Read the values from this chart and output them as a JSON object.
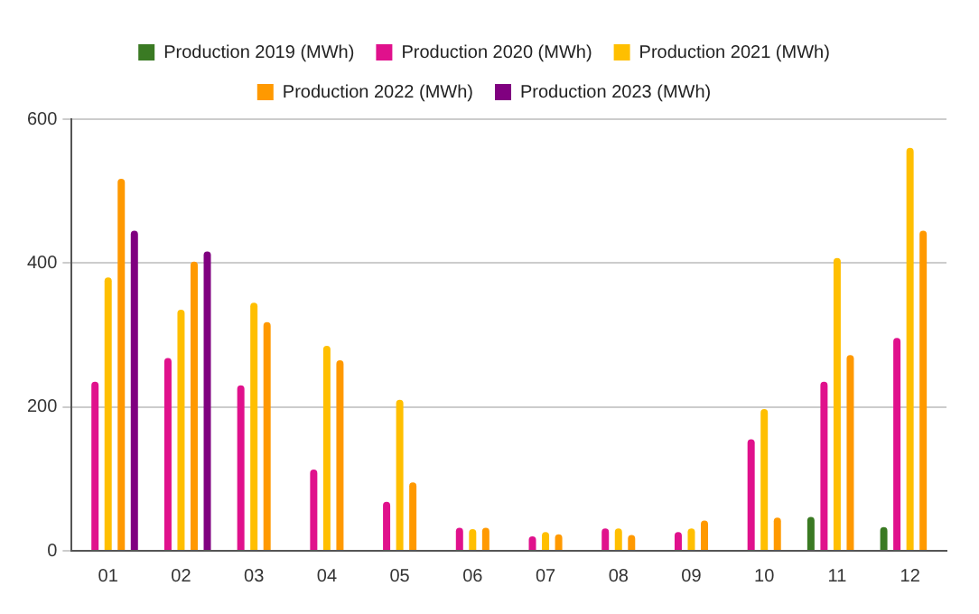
{
  "chart_data": {
    "type": "bar",
    "categories": [
      "01",
      "02",
      "03",
      "04",
      "05",
      "06",
      "07",
      "08",
      "09",
      "10",
      "11",
      "12"
    ],
    "series": [
      {
        "name": "Production 2019 (MWh)",
        "color": "#3a7a23",
        "values": [
          null,
          null,
          null,
          null,
          null,
          null,
          null,
          null,
          null,
          null,
          47,
          33
        ]
      },
      {
        "name": "Production 2020 (MWh)",
        "color": "#e0118c",
        "values": [
          235,
          268,
          230,
          113,
          68,
          32,
          20,
          31,
          26,
          155,
          235,
          296
        ]
      },
      {
        "name": "Production 2021 (MWh)",
        "color": "#ffbf00",
        "values": [
          380,
          335,
          345,
          285,
          210,
          30,
          26,
          31,
          31,
          197,
          407,
          560
        ]
      },
      {
        "name": "Production 2022 (MWh)",
        "color": "#ff9900",
        "values": [
          517,
          402,
          318,
          265,
          95,
          32,
          23,
          22,
          42,
          46,
          272,
          445
        ]
      },
      {
        "name": "Production 2023 (MWh)",
        "color": "#800080",
        "values": [
          445,
          416,
          null,
          null,
          null,
          null,
          null,
          null,
          null,
          null,
          null,
          null
        ]
      }
    ],
    "ylim": [
      0,
      600
    ],
    "yticks": [
      0,
      200,
      400,
      600
    ],
    "grid": "y",
    "legend": "top"
  }
}
